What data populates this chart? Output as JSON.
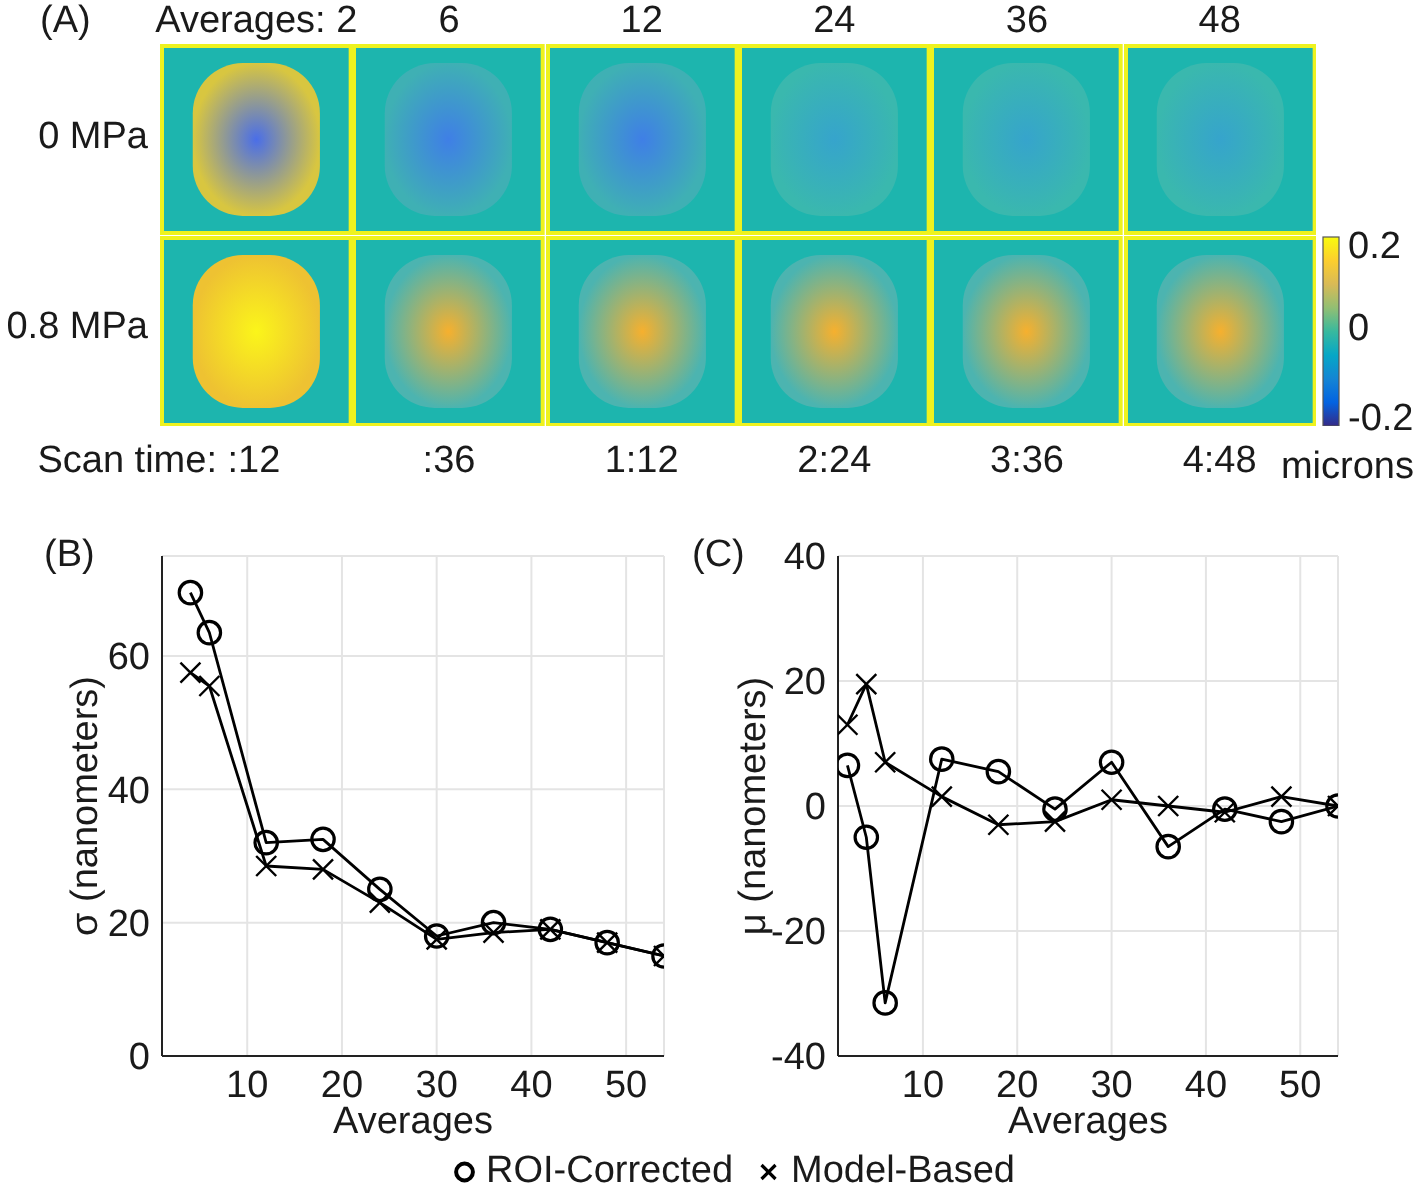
{
  "chart_data": [
    {
      "type": "heatmap",
      "title": "(A)",
      "categories": [
        "Averages: 2",
        "6",
        "12",
        "24",
        "36",
        "48"
      ],
      "y_categories": [
        "0 MPa",
        "0.8 MPa"
      ],
      "cells": [
        [
          null,
          null,
          null,
          null,
          null,
          null
        ],
        [
          null,
          null,
          null,
          null,
          null,
          null
        ]
      ],
      "annotations": [
        "Scan time: :12",
        ":36",
        "1:12",
        "2:24",
        "3:36",
        "4:48"
      ],
      "clim": [
        -0.2,
        0.2
      ],
      "cticks": [
        -0.2,
        0,
        0.2
      ],
      "clabel": "microns"
    },
    {
      "type": "line",
      "title": "(B)",
      "xlabel": "Averages",
      "ylabel": "σ (nanometers)",
      "x": [
        4,
        6,
        12,
        18,
        24,
        30,
        36,
        42,
        48,
        54
      ],
      "series": [
        {
          "name": "ROI-Corrected",
          "color": "#000000",
          "marker": "circle",
          "values": [
            69.5,
            63.5,
            32,
            32.5,
            25,
            18,
            20,
            19,
            17,
            15
          ]
        },
        {
          "name": "Model-Based",
          "color": "#000000",
          "marker": "cross",
          "values": [
            57.5,
            55.5,
            28.5,
            28,
            23,
            17.5,
            18.5,
            19,
            17,
            15
          ]
        }
      ],
      "xlim": [
        1,
        54
      ],
      "ylim": [
        0,
        75
      ],
      "xticks": [
        10,
        20,
        30,
        40,
        50
      ],
      "yticks": [
        0,
        20,
        40,
        60
      ],
      "grid": true,
      "legend": "bottom"
    },
    {
      "type": "line",
      "title": "(C)",
      "xlabel": "Averages",
      "ylabel": "μ (nanometers)",
      "x": [
        2,
        4,
        6,
        12,
        18,
        24,
        30,
        36,
        42,
        48,
        54
      ],
      "series": [
        {
          "name": "ROI-Corrected",
          "color": "#000000",
          "marker": "circle",
          "values": [
            6.5,
            -5,
            -31.5,
            7.5,
            5.5,
            -0.5,
            7,
            -6.5,
            -0.5,
            -2.5,
            0
          ]
        },
        {
          "name": "Model-Based",
          "color": "#000000",
          "marker": "cross",
          "values": [
            13,
            19.5,
            7,
            1.5,
            -3,
            -2.5,
            1,
            0,
            -1,
            1.5,
            0
          ]
        }
      ],
      "xlim": [
        1,
        54
      ],
      "ylim": [
        -40,
        40
      ],
      "xticks": [
        10,
        20,
        30,
        40,
        50
      ],
      "yticks": [
        -40,
        -20,
        0,
        20,
        40
      ],
      "grid": true,
      "legend": "bottom"
    }
  ]
}
